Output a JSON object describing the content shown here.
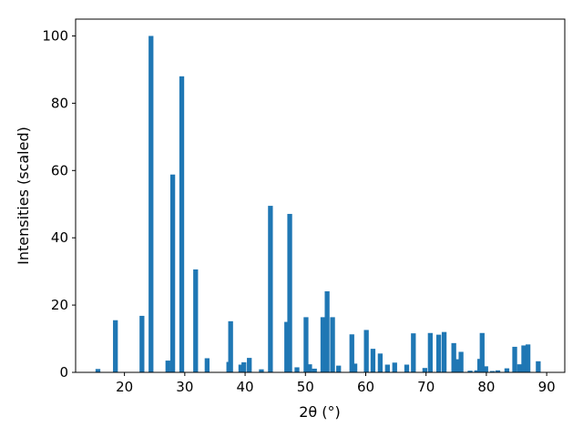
{
  "chart_data": {
    "type": "bar",
    "title": "",
    "xlabel": "2θ (°)",
    "ylabel": "Intensities (scaled)",
    "xlim": [
      11.9,
      93.0
    ],
    "ylim": [
      0,
      105
    ],
    "xticks": [
      20,
      30,
      40,
      50,
      60,
      70,
      80,
      90
    ],
    "yticks": [
      0,
      20,
      40,
      60,
      80,
      100
    ],
    "grid": false,
    "bar_width": 0.8,
    "bar_color": "#1f77b4",
    "x": [
      15.6,
      18.5,
      22.9,
      24.4,
      27.2,
      28.0,
      29.5,
      31.8,
      33.7,
      37.3,
      37.6,
      39.3,
      39.8,
      40.7,
      42.7,
      44.2,
      46.9,
      47.4,
      48.6,
      50.1,
      50.7,
      51.5,
      52.9,
      53.6,
      54.5,
      55.5,
      57.7,
      58.2,
      60.1,
      61.2,
      62.4,
      63.6,
      64.8,
      66.8,
      67.9,
      69.8,
      70.7,
      72.1,
      73.0,
      74.6,
      75.3,
      75.8,
      77.3,
      78.4,
      78.9,
      79.3,
      79.9,
      81.0,
      81.9,
      83.4,
      84.7,
      85.5,
      86.2,
      86.9,
      88.6
    ],
    "values": [
      1.0,
      15.5,
      16.8,
      100.0,
      3.5,
      58.8,
      88.0,
      30.6,
      4.2,
      3.1,
      15.2,
      2.3,
      3.0,
      4.3,
      0.9,
      49.5,
      15.0,
      47.1,
      1.5,
      16.4,
      2.4,
      1.1,
      16.4,
      24.1,
      16.4,
      2.0,
      11.3,
      2.6,
      12.6,
      7.0,
      5.6,
      2.3,
      2.9,
      2.3,
      11.6,
      1.3,
      11.7,
      11.2,
      12.0,
      8.7,
      3.9,
      6.1,
      0.5,
      0.6,
      4.0,
      11.7,
      1.8,
      0.4,
      0.6,
      1.2,
      7.6,
      2.4,
      8.0,
      8.3,
      3.3
    ]
  }
}
